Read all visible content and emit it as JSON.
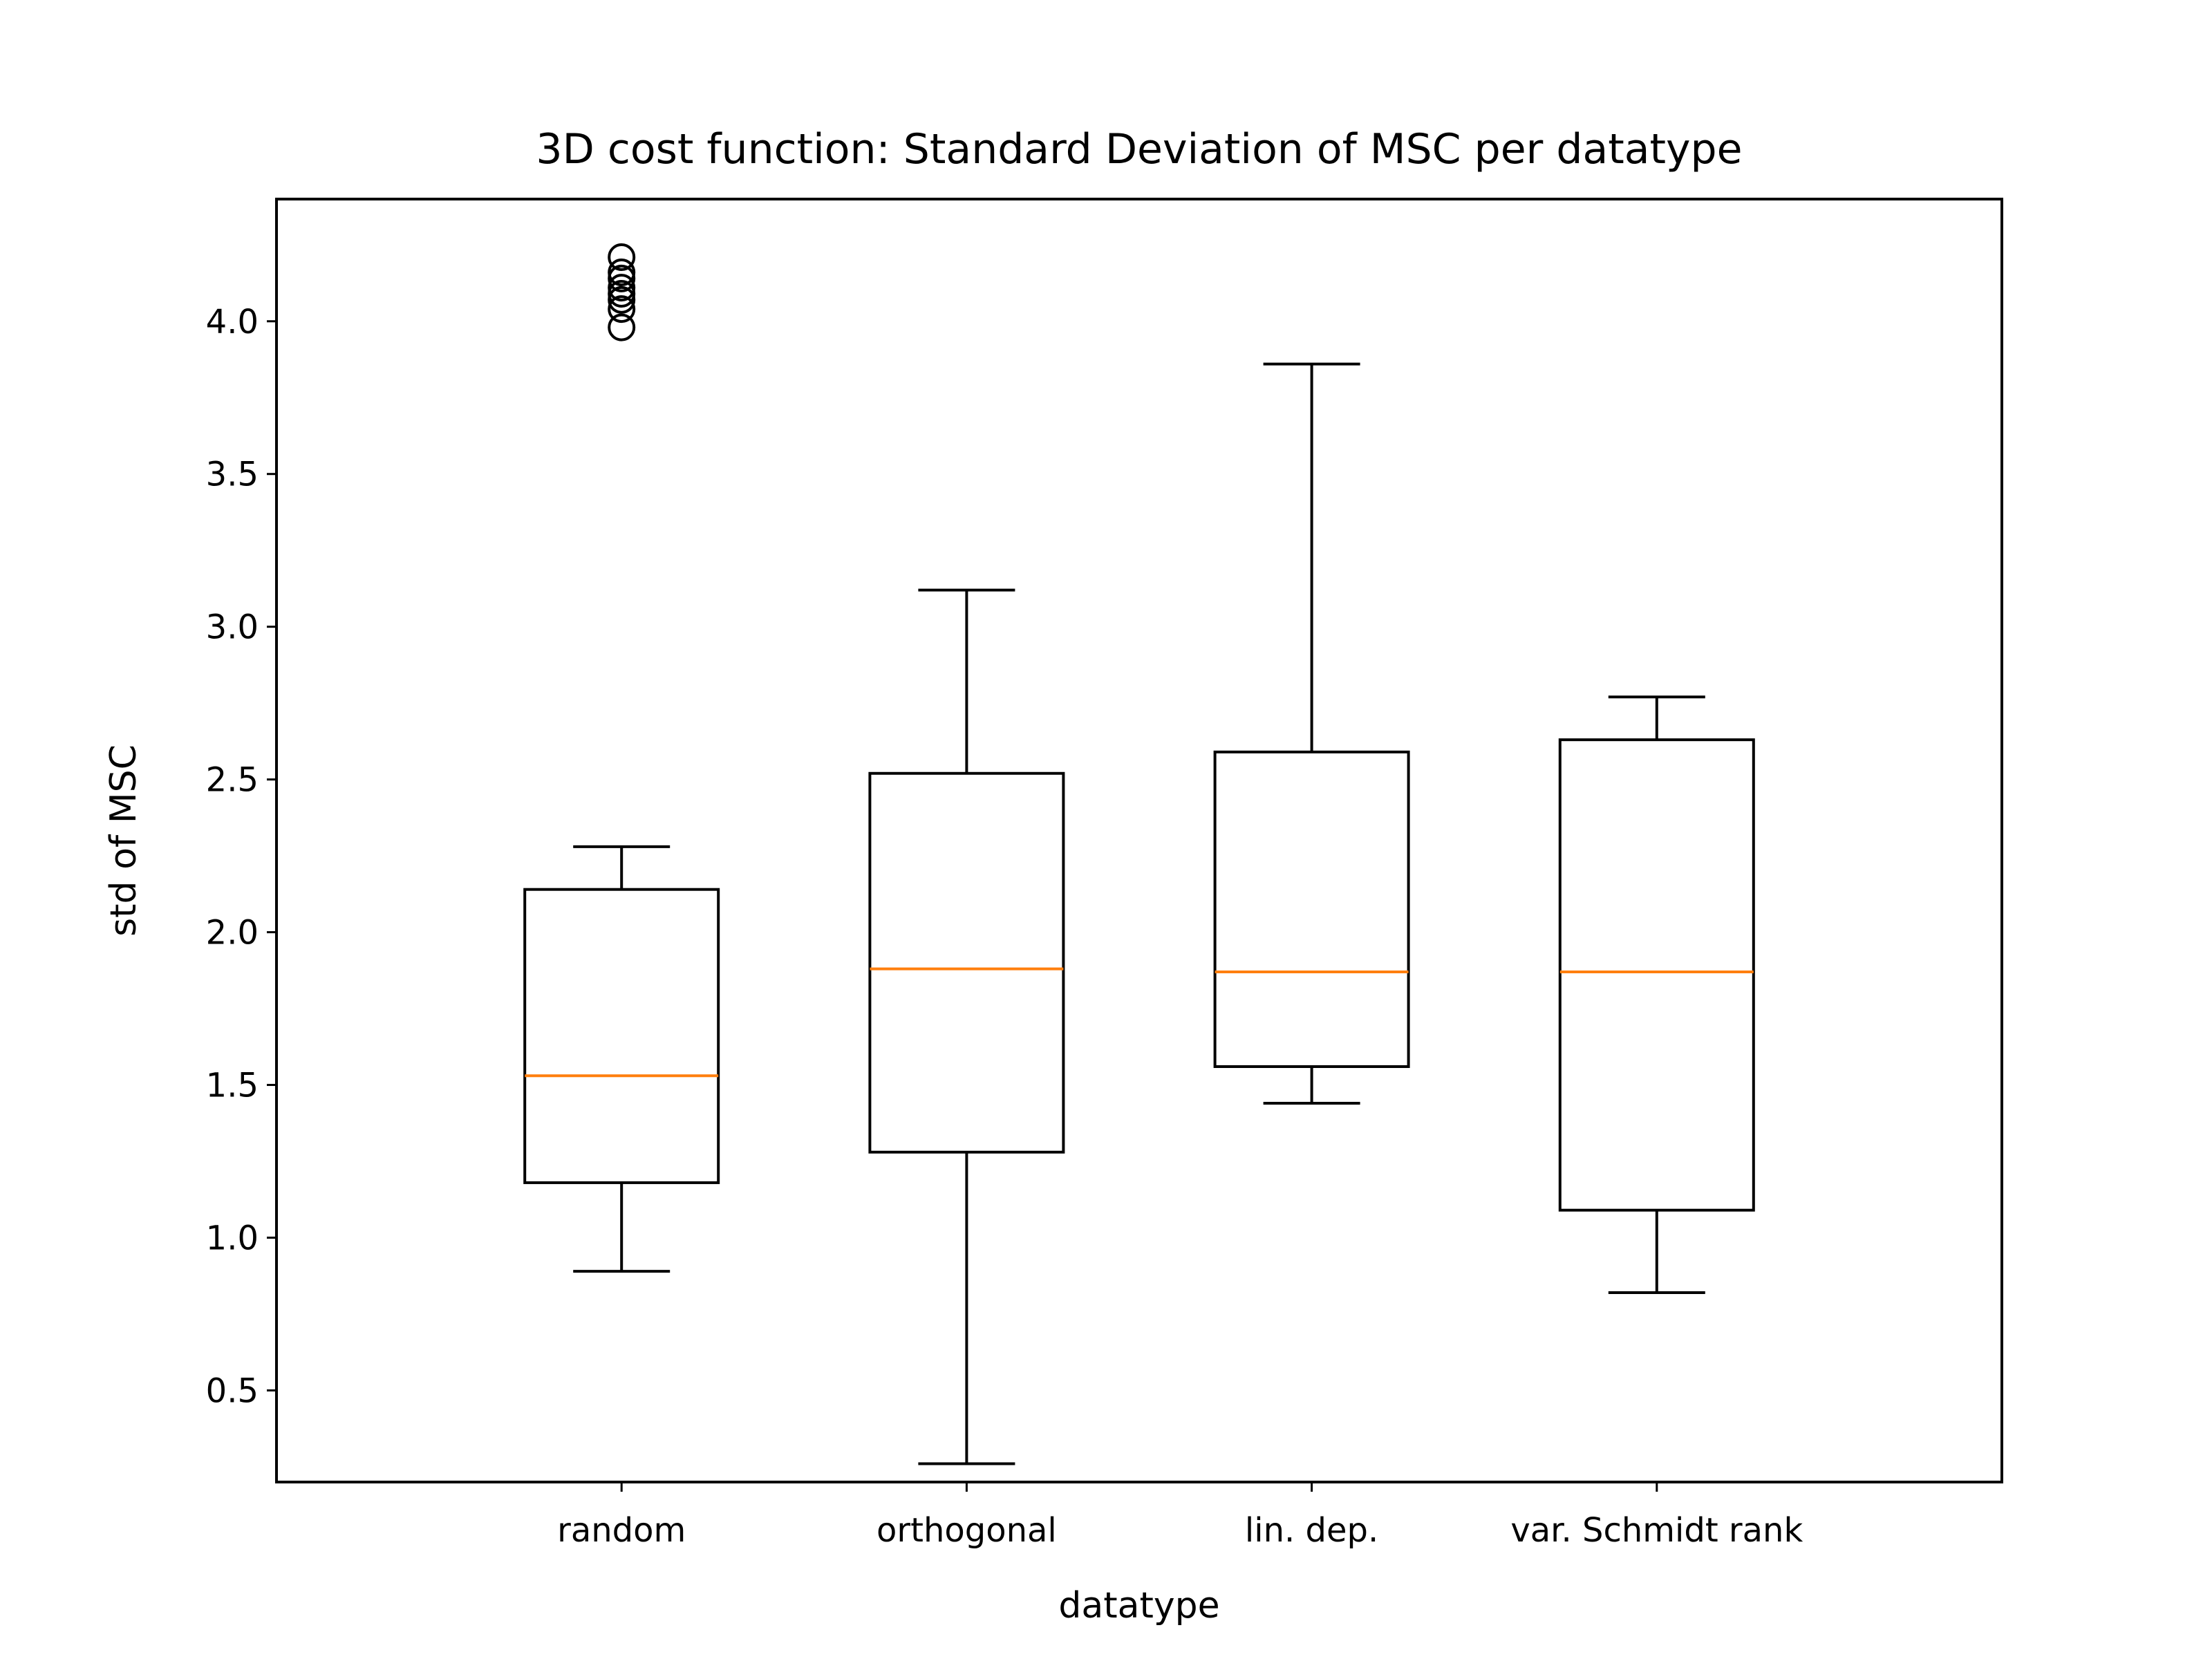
{
  "chart_data": {
    "type": "box",
    "title": "3D cost function: Standard Deviation of MSC per datatype",
    "xlabel": "datatype",
    "ylabel": "std of MSC",
    "ylim": [
      0.2,
      4.4
    ],
    "yticks": [
      "0.5",
      "1.0",
      "1.5",
      "2.0",
      "2.5",
      "3.0",
      "3.5",
      "4.0"
    ],
    "grid": false,
    "colors": {
      "box": "#000000",
      "median": "#ff7f0e"
    },
    "categories": [
      "random",
      "orthogonal",
      "lin. dep.",
      "var. Schmidt rank"
    ],
    "boxes": [
      {
        "label": "random",
        "whisker_low": 0.89,
        "q1": 1.18,
        "median": 1.53,
        "q3": 2.14,
        "whisker_high": 2.28,
        "outliers": [
          3.98,
          4.04,
          4.07,
          4.09,
          4.11,
          4.14,
          4.16,
          4.21
        ]
      },
      {
        "label": "orthogonal",
        "whisker_low": 0.26,
        "q1": 1.28,
        "median": 1.88,
        "q3": 2.52,
        "whisker_high": 3.12,
        "outliers": []
      },
      {
        "label": "lin. dep.",
        "whisker_low": 1.44,
        "q1": 1.56,
        "median": 1.87,
        "q3": 2.59,
        "whisker_high": 3.86,
        "outliers": []
      },
      {
        "label": "var. Schmidt rank",
        "whisker_low": 0.82,
        "q1": 1.09,
        "median": 1.87,
        "q3": 2.63,
        "whisker_high": 2.77,
        "outliers": []
      }
    ]
  }
}
